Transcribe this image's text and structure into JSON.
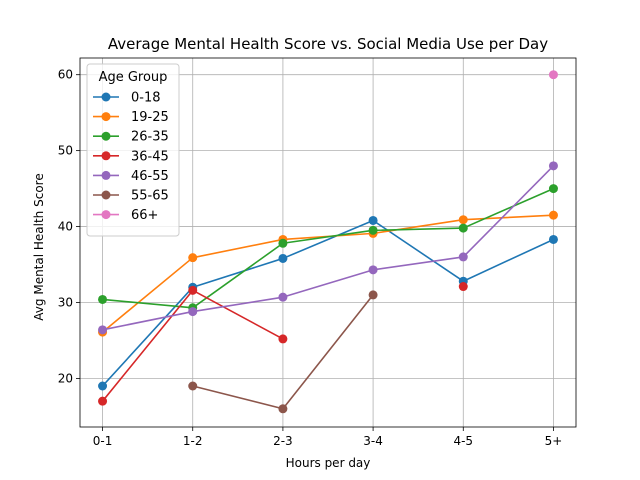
{
  "chart_data": {
    "type": "line",
    "title": "Average Mental Health Score vs. Social Media Use per Day",
    "xlabel": "Hours per day",
    "ylabel": "Avg Mental Health Score",
    "categories": [
      "0-1",
      "1-2",
      "2-3",
      "3-4",
      "4-5",
      "5+"
    ],
    "ylim": [
      13.6,
      62.2
    ],
    "yticks": [
      20,
      30,
      40,
      50,
      60
    ],
    "grid": true,
    "legend": {
      "title": "Age Group",
      "placement": "top-left"
    },
    "series": [
      {
        "name": "0-18",
        "color": "#1f77b4",
        "values": [
          19.0,
          32.0,
          35.8,
          40.8,
          32.8,
          38.3
        ]
      },
      {
        "name": "19-25",
        "color": "#ff7f0e",
        "values": [
          26.1,
          35.9,
          38.3,
          39.1,
          40.9,
          41.5
        ]
      },
      {
        "name": "26-35",
        "color": "#2ca02c",
        "values": [
          30.4,
          29.3,
          37.8,
          39.5,
          39.8,
          45.0
        ]
      },
      {
        "name": "36-45",
        "color": "#d62728",
        "values": [
          17.0,
          31.6,
          25.2,
          null,
          32.1,
          null
        ]
      },
      {
        "name": "46-55",
        "color": "#9467bd",
        "values": [
          26.4,
          28.8,
          30.7,
          34.3,
          36.0,
          48.0
        ]
      },
      {
        "name": "55-65",
        "color": "#8c564b",
        "values": [
          null,
          19.0,
          16.0,
          31.0,
          null,
          null
        ]
      },
      {
        "name": "66+",
        "color": "#e377c2",
        "values": [
          null,
          null,
          null,
          null,
          null,
          60.0
        ]
      }
    ]
  }
}
